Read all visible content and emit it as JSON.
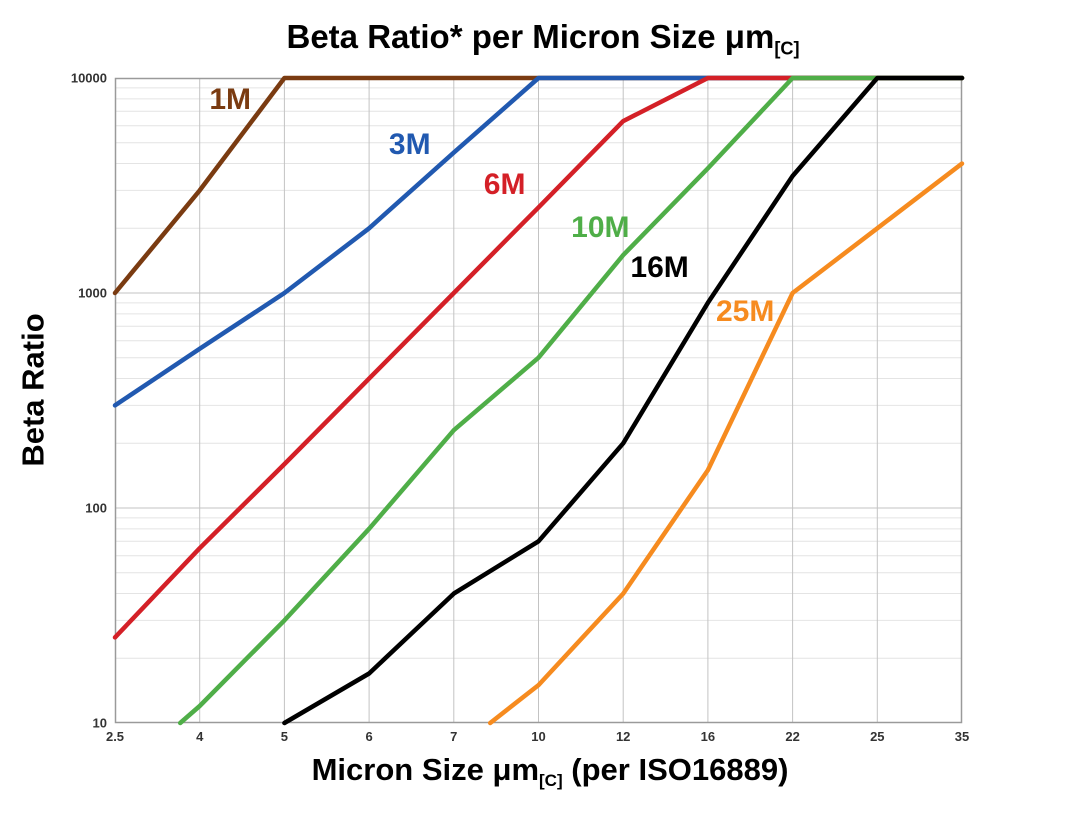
{
  "title": {
    "text": "Beta Ratio* per Micron Size μm",
    "subscript": "[C]"
  },
  "y_axis": {
    "label": "Beta Ratio"
  },
  "x_axis": {
    "label_pre": "Micron Size μm",
    "label_sub": "[C]",
    "label_post": " (per ISO16889)"
  },
  "chart_data": {
    "type": "line",
    "title": "Beta Ratio* per Micron Size μm[C]",
    "xlabel": "Micron Size μm[C] (per ISO16889)",
    "ylabel": "Beta Ratio",
    "x_scale": "ordinal-equal-spacing",
    "y_scale": "log",
    "ylim": [
      10,
      10000
    ],
    "grid": {
      "vertical": "major",
      "horizontal": "log-minor"
    },
    "legend": "inline-colored-labels",
    "categories": [
      "2.5",
      "4",
      "5",
      "6",
      "7",
      "10",
      "12",
      "16",
      "22",
      "25",
      "35"
    ],
    "y_ticks": [
      "10000",
      "1000",
      "100",
      "10"
    ],
    "series": [
      {
        "name": "1M",
        "color": "#7a3b11",
        "values": [
          1000,
          3000,
          10000,
          10000,
          10000,
          10000,
          10000,
          10000,
          10000,
          10000,
          10000
        ]
      },
      {
        "name": "3M",
        "color": "#2159b0",
        "values": [
          300,
          550,
          1000,
          2000,
          4500,
          10000,
          10000,
          10000,
          10000,
          10000,
          10000
        ]
      },
      {
        "name": "6M",
        "color": "#d42027",
        "values": [
          25,
          65,
          160,
          400,
          1000,
          2500,
          6300,
          10000,
          10000,
          10000,
          10000
        ]
      },
      {
        "name": "10M",
        "color": "#4fae48",
        "start": {
          "fx": 0.77,
          "value": 10
        },
        "values": [
          null,
          12,
          30,
          80,
          230,
          500,
          1500,
          3800,
          10000,
          10000,
          10000
        ]
      },
      {
        "name": "16M",
        "color": "#000000",
        "values": [
          null,
          null,
          10,
          17,
          40,
          70,
          200,
          900,
          3500,
          10000,
          10000
        ]
      },
      {
        "name": "25M",
        "color": "#f68b1f",
        "start": {
          "fx": 4.43,
          "value": 10
        },
        "values": [
          null,
          null,
          null,
          null,
          null,
          15,
          40,
          150,
          1000,
          2000,
          4000
        ]
      }
    ],
    "annotations": [
      {
        "text": "1M",
        "color": "#7a3b11",
        "fx": 0.136,
        "fy": 0.034
      },
      {
        "text": "3M",
        "color": "#2159b0",
        "fx": 0.348,
        "fy": 0.104
      },
      {
        "text": "6M",
        "color": "#d42027",
        "fx": 0.46,
        "fy": 0.166
      },
      {
        "text": "10M",
        "color": "#4fae48",
        "fx": 0.573,
        "fy": 0.233
      },
      {
        "text": "16M",
        "color": "#000000",
        "fx": 0.643,
        "fy": 0.295
      },
      {
        "text": "25M",
        "color": "#f68b1f",
        "fx": 0.744,
        "fy": 0.363
      }
    ]
  }
}
